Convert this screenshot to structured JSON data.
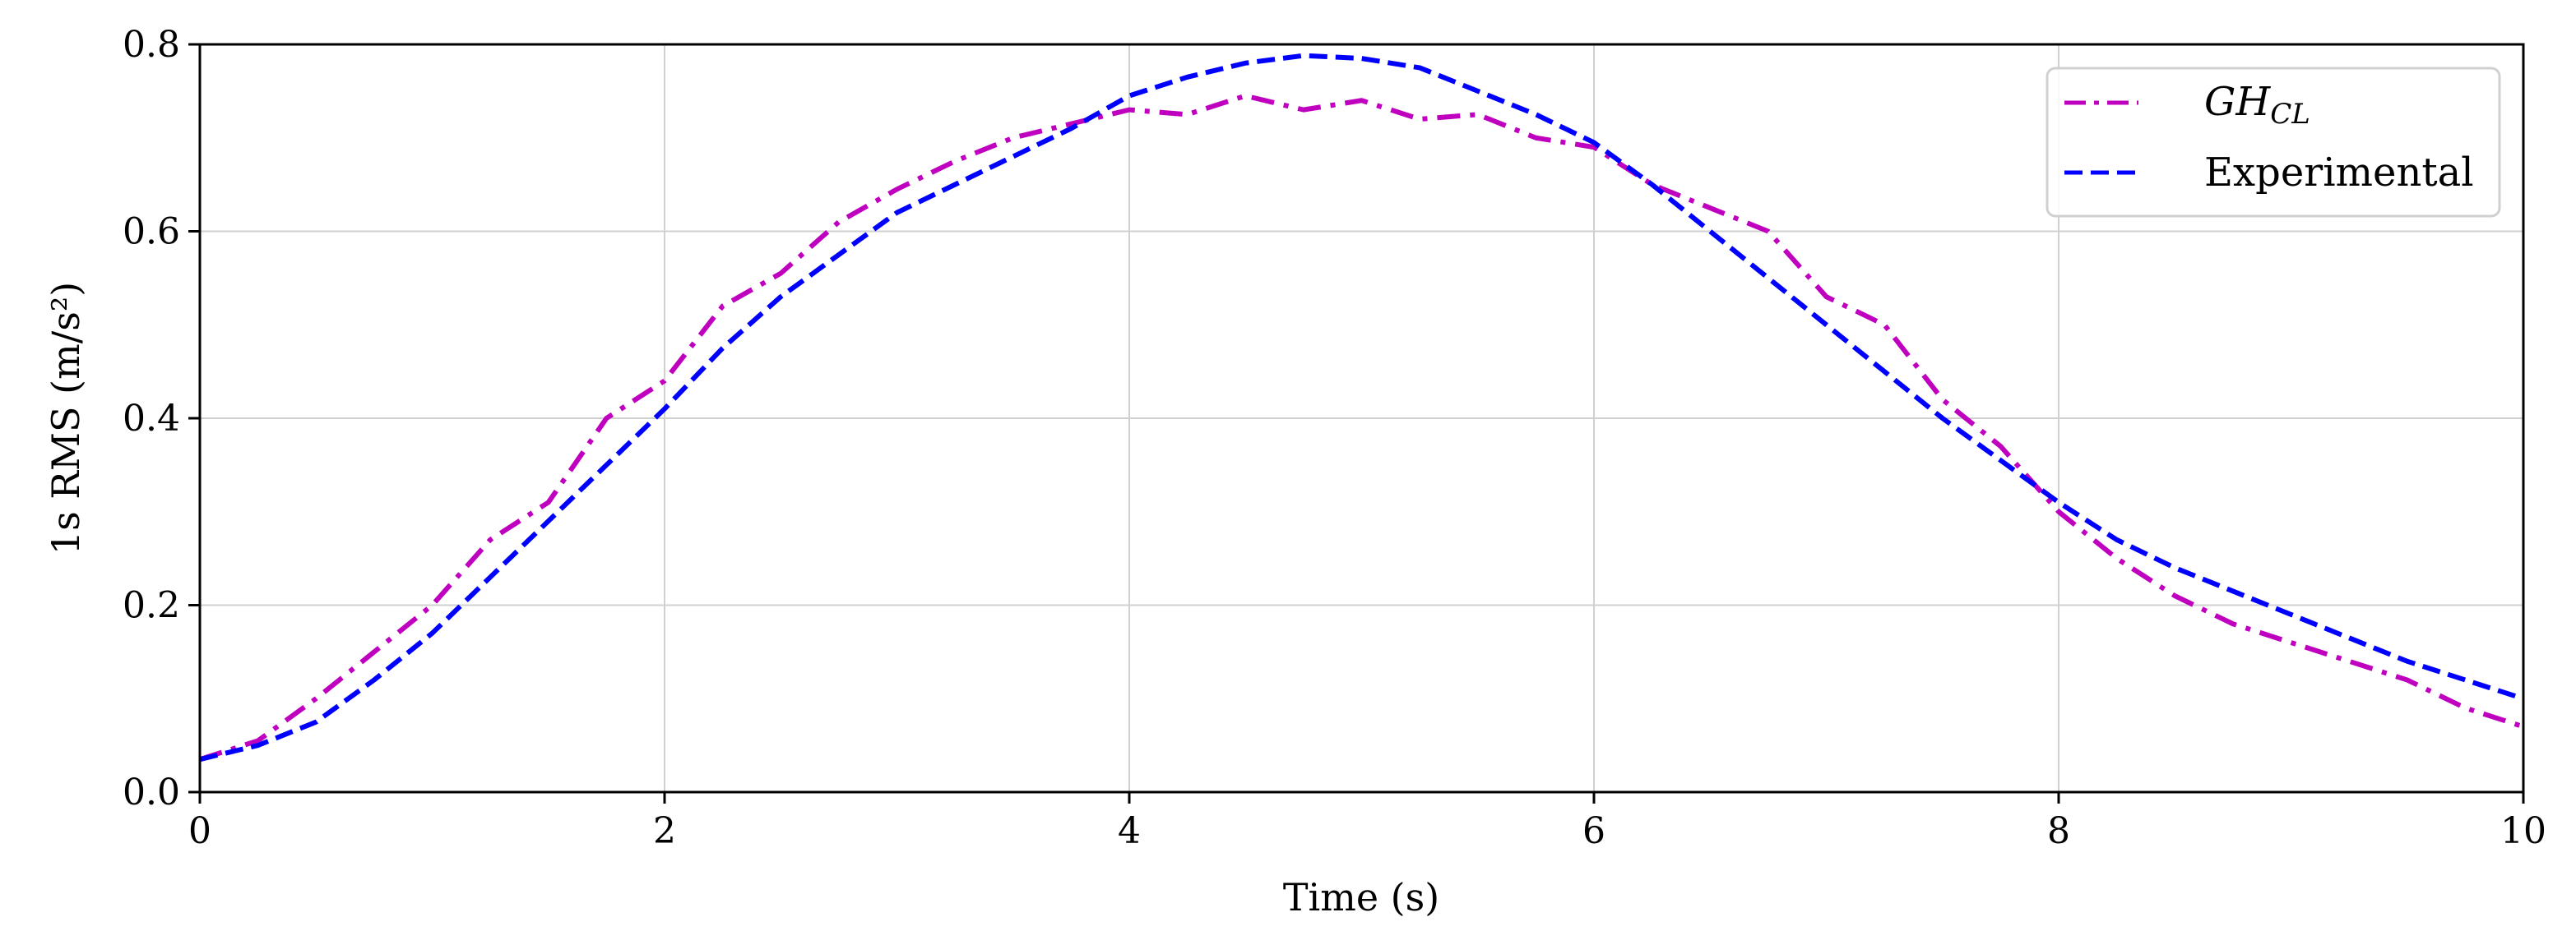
{
  "chart_data": {
    "type": "line",
    "title": "",
    "xlabel": "Time (s)",
    "ylabel": "1s RMS (m/s²)",
    "xlim": [
      0,
      10
    ],
    "ylim": [
      0,
      0.8
    ],
    "xticks": [
      "0",
      "2",
      "4",
      "6",
      "8",
      "10"
    ],
    "yticks": [
      "0.0",
      "0.2",
      "0.4",
      "0.6",
      "0.8"
    ],
    "grid": true,
    "legend_position": "upper right",
    "series": [
      {
        "name": "GH_CL",
        "label_main": "GH",
        "label_sub": "CL",
        "color": "#bf00bf",
        "style": "dashdot",
        "x": [
          0,
          0.25,
          0.5,
          0.75,
          1,
          1.25,
          1.5,
          1.75,
          2,
          2.25,
          2.5,
          2.75,
          3,
          3.25,
          3.5,
          3.75,
          4,
          4.25,
          4.5,
          4.75,
          5,
          5.25,
          5.5,
          5.75,
          6,
          6.25,
          6.5,
          6.75,
          7,
          7.25,
          7.5,
          7.75,
          8,
          8.25,
          8.5,
          8.75,
          9,
          9.25,
          9.5,
          9.75,
          10
        ],
        "values": [
          0.035,
          0.055,
          0.1,
          0.15,
          0.2,
          0.27,
          0.31,
          0.4,
          0.44,
          0.52,
          0.555,
          0.61,
          0.645,
          0.675,
          0.7,
          0.715,
          0.73,
          0.725,
          0.745,
          0.73,
          0.74,
          0.72,
          0.725,
          0.7,
          0.69,
          0.65,
          0.625,
          0.6,
          0.53,
          0.5,
          0.42,
          0.37,
          0.3,
          0.25,
          0.21,
          0.18,
          0.16,
          0.14,
          0.12,
          0.09,
          0.07
        ]
      },
      {
        "name": "Experimental",
        "color": "#0000ff",
        "style": "dashed",
        "x": [
          0,
          0.25,
          0.5,
          0.75,
          1,
          1.25,
          1.5,
          1.75,
          2,
          2.25,
          2.5,
          2.75,
          3,
          3.25,
          3.5,
          3.75,
          4,
          4.25,
          4.5,
          4.75,
          5,
          5.25,
          5.5,
          5.75,
          6,
          6.25,
          6.5,
          6.75,
          7,
          7.25,
          7.5,
          7.75,
          8,
          8.25,
          8.5,
          8.75,
          9,
          9.25,
          9.5,
          9.75,
          10
        ],
        "values": [
          0.035,
          0.05,
          0.075,
          0.12,
          0.17,
          0.23,
          0.29,
          0.35,
          0.41,
          0.475,
          0.53,
          0.575,
          0.62,
          0.65,
          0.68,
          0.71,
          0.745,
          0.765,
          0.78,
          0.788,
          0.785,
          0.775,
          0.75,
          0.725,
          0.695,
          0.65,
          0.6,
          0.55,
          0.5,
          0.45,
          0.4,
          0.355,
          0.31,
          0.27,
          0.24,
          0.215,
          0.19,
          0.165,
          0.14,
          0.12,
          0.1
        ]
      }
    ]
  }
}
